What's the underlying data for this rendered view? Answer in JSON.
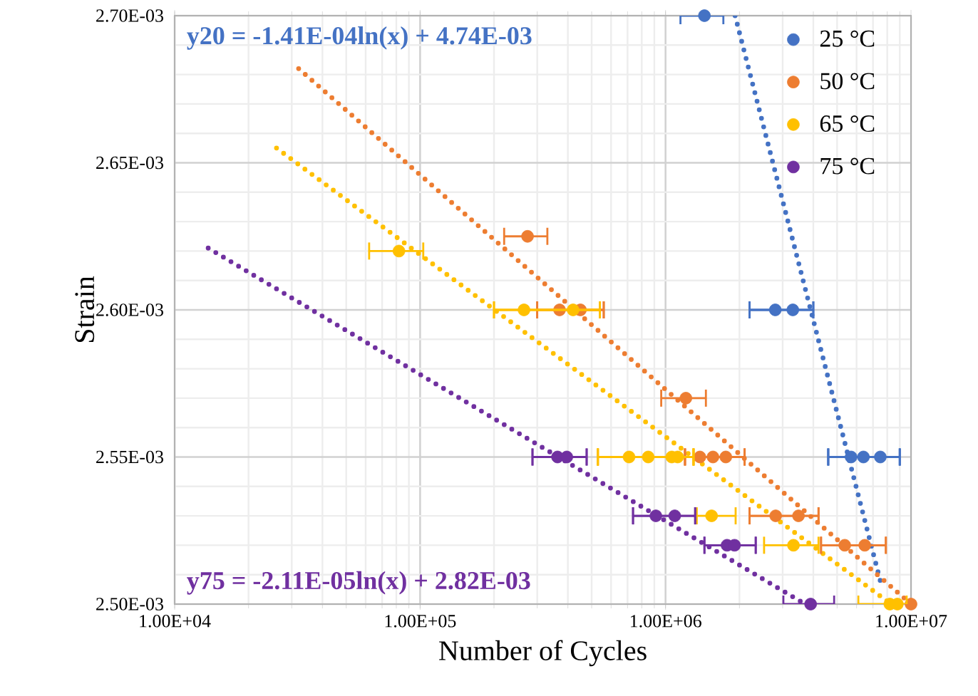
{
  "chart_data": {
    "type": "scatter",
    "xlabel": "Number of Cycles",
    "ylabel": "Strain",
    "log": "x",
    "grid": true,
    "legend": "top right",
    "xlim": [
      10000,
      10000000
    ],
    "ylim": [
      0.0025,
      0.0027
    ],
    "xticks": [
      {
        "value": 10000,
        "label": "1.00E+04"
      },
      {
        "value": 100000,
        "label": "1.00E+05"
      },
      {
        "value": 1000000,
        "label": "1.00E+06"
      },
      {
        "value": 10000000,
        "label": "1.00E+07"
      }
    ],
    "yticks": [
      {
        "value": 0.0025,
        "label": "2.50E-03"
      },
      {
        "value": 0.00255,
        "label": "2.55E-03"
      },
      {
        "value": 0.0026,
        "label": "2.60E-03"
      },
      {
        "value": 0.00265,
        "label": "2.65E-03"
      },
      {
        "value": 0.0027,
        "label": "2.70E-03"
      }
    ],
    "annotations": [
      "y20 = -1.41E-04ln(x) + 4.74E-03",
      "y75 = -2.11E-05ln(x) + 2.82E-03"
    ],
    "series": [
      {
        "name": "25 °C",
        "marker": "circle",
        "color": "#4472c4",
        "x": [
          1440000,
          2800000,
          3300000,
          5700000,
          6400000,
          7500000
        ],
        "values": [
          0.0027,
          0.0026,
          0.0026,
          0.00255,
          0.00255,
          0.00255
        ],
        "xerrors": [
          [
            1150000,
            1720000
          ],
          [
            2200000,
            4000000
          ],
          [
            2200000,
            4000000
          ],
          [
            4600000,
            9000000
          ],
          [
            4600000,
            9000000
          ],
          [
            4600000,
            9000000
          ]
        ]
      },
      {
        "name": "50 °C",
        "marker": "circle",
        "color": "#ed7d31",
        "x": [
          274000,
          370000,
          450000,
          1210000,
          1380000,
          1560000,
          1760000,
          2810000,
          3480000,
          5370000,
          6480000,
          10000000
        ],
        "values": [
          0.002625,
          0.0026,
          0.0026,
          0.00257,
          0.00255,
          0.00255,
          0.00255,
          0.00253,
          0.00253,
          0.00252,
          0.00252,
          0.0025
        ],
        "xerrors": [
          [
            220000,
            330000
          ],
          [
            300000,
            560000
          ],
          [
            300000,
            560000
          ],
          [
            960000,
            1460000
          ],
          [
            1200000,
            2100000
          ],
          [
            1200000,
            2100000
          ],
          [
            1200000,
            2100000
          ],
          [
            2200000,
            4200000
          ],
          [
            2200000,
            4200000
          ],
          [
            4300000,
            7900000
          ],
          [
            4300000,
            7900000
          ],
          null
        ]
      },
      {
        "name": "65 °C",
        "marker": "circle",
        "color": "#ffc000",
        "x": [
          82000,
          265000,
          420000,
          710000,
          850000,
          1060000,
          1120000,
          1540000,
          3320000,
          8200000,
          8800000
        ],
        "values": [
          0.00262,
          0.0026,
          0.0026,
          0.00255,
          0.00255,
          0.00255,
          0.00255,
          0.00253,
          0.00252,
          0.0025,
          0.0025
        ],
        "xerrors": [
          [
            62000,
            103000
          ],
          [
            200000,
            540000
          ],
          [
            200000,
            540000
          ],
          [
            530000,
            1300000
          ],
          [
            530000,
            1300000
          ],
          [
            530000,
            1300000
          ],
          [
            530000,
            1300000
          ],
          [
            1340000,
            1930000
          ],
          [
            2520000,
            4200000
          ],
          [
            6100000,
            9600000
          ],
          null
        ]
      },
      {
        "name": "75 °C",
        "marker": "circle",
        "color": "#7030a0",
        "x": [
          363000,
          396000,
          913000,
          1090000,
          1780000,
          1910000,
          3900000
        ],
        "values": [
          0.00255,
          0.00255,
          0.00253,
          0.00253,
          0.00252,
          0.00252,
          0.0025
        ],
        "xerrors": [
          [
            287000,
            477000
          ],
          [
            287000,
            477000
          ],
          [
            737000,
            1320000
          ],
          [
            737000,
            1320000
          ],
          [
            1440000,
            2330000
          ],
          [
            1440000,
            2330000
          ],
          [
            3020000,
            4860000
          ]
        ]
      },
      {
        "type": "line",
        "marker": "none",
        "line_style": "dotted",
        "color": "#4472c4",
        "x": [
          1920000,
          7600000
        ],
        "values": [
          0.0027,
          0.002506
        ]
      },
      {
        "type": "line",
        "marker": "none",
        "line_style": "dotted",
        "color": "#ed7d31",
        "x": [
          32000,
          10000000
        ],
        "values": [
          0.002682,
          0.0025
        ]
      },
      {
        "type": "line",
        "marker": "none",
        "line_style": "dotted",
        "color": "#ffc000",
        "x": [
          26000,
          8300000
        ],
        "values": [
          0.002655,
          0.0025
        ]
      },
      {
        "type": "line",
        "marker": "none",
        "line_style": "dotted",
        "color": "#7030a0",
        "x": [
          13700,
          3700000
        ],
        "values": [
          0.002621,
          0.0025
        ]
      }
    ]
  }
}
